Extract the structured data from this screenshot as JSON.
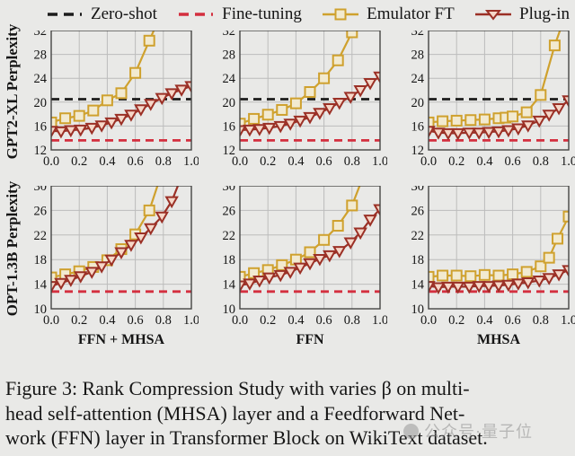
{
  "colors": {
    "background": "#e9e9e7",
    "frame": "#444444",
    "grid": "#bcbcbc",
    "tick_text": "#151515",
    "zero_shot": "#1c1c1c",
    "fine_tuning": "#d42f3f",
    "emulator_line": "#cfa12e",
    "emulator_fill": "#f2ead0",
    "plugin_line": "#9b3026",
    "plugin_fill": "#f6d7c8"
  },
  "legend": {
    "items": [
      {
        "key": "zero",
        "label": "Zero-shot"
      },
      {
        "key": "fine",
        "label": "Fine-tuning"
      },
      {
        "key": "emulator",
        "label": "Emulator FT"
      },
      {
        "key": "plugin",
        "label": "Plug-in"
      }
    ]
  },
  "rows": [
    {
      "ylabel": "GPT2-XL Perplexity"
    },
    {
      "ylabel": "OPT-1.3B Perplexity"
    }
  ],
  "caption": {
    "line1": "Figure 3: Rank Compression Study with varies β on multi-",
    "line2": "head self-attention (MHSA) layer and a Feedforward Net-",
    "line3": "work (FFN) layer in Transformer Block on WikiText dataset."
  },
  "watermark": {
    "text": "公众号·量子位"
  },
  "chart_data": [
    {
      "type": "line",
      "row": 0,
      "col": 0,
      "model": "GPT2-XL",
      "layer": "FFN + MHSA",
      "xlabel": "",
      "ylim": [
        12,
        32
      ],
      "yticks": [
        12,
        16,
        20,
        24,
        28,
        32
      ],
      "xlim": [
        0,
        1
      ],
      "xticks": [
        0.0,
        0.2,
        0.4,
        0.6,
        0.8,
        1.0
      ],
      "zero_shot": 20.5,
      "fine_tuning": 13.6,
      "series": [
        {
          "name": "Emulator FT",
          "marker": "square",
          "x": [
            0,
            0.1,
            0.2,
            0.3,
            0.4,
            0.5,
            0.6,
            0.7,
            0.76
          ],
          "y": [
            16.6,
            17.3,
            17.7,
            18.6,
            20.3,
            21.5,
            24.9,
            30.3,
            33.5
          ]
        },
        {
          "name": "Plug-in",
          "marker": "triangle",
          "x": [
            0,
            0.07,
            0.14,
            0.21,
            0.29,
            0.36,
            0.43,
            0.5,
            0.57,
            0.64,
            0.71,
            0.79,
            0.86,
            0.93,
            1.0
          ],
          "y": [
            15.2,
            15.1,
            15.3,
            15.4,
            15.7,
            16.1,
            16.6,
            17.2,
            17.9,
            18.8,
            19.7,
            20.7,
            21.5,
            22.1,
            22.7
          ]
        }
      ]
    },
    {
      "type": "line",
      "row": 0,
      "col": 1,
      "model": "GPT2-XL",
      "layer": "FFN",
      "xlabel": "",
      "ylim": [
        12,
        32
      ],
      "yticks": [
        12,
        16,
        20,
        24,
        28,
        32
      ],
      "xlim": [
        0,
        1
      ],
      "xticks": [
        0.0,
        0.2,
        0.4,
        0.6,
        0.8,
        1.0
      ],
      "zero_shot": 20.5,
      "fine_tuning": 13.6,
      "series": [
        {
          "name": "Emulator FT",
          "marker": "square",
          "x": [
            0,
            0.1,
            0.2,
            0.3,
            0.4,
            0.5,
            0.6,
            0.7,
            0.8,
            0.85
          ],
          "y": [
            16.4,
            17.2,
            17.9,
            18.7,
            19.8,
            21.7,
            24.0,
            27.0,
            31.7,
            33.5
          ]
        },
        {
          "name": "Plug-in",
          "marker": "triangle",
          "x": [
            0,
            0.07,
            0.14,
            0.21,
            0.29,
            0.36,
            0.43,
            0.5,
            0.57,
            0.64,
            0.71,
            0.79,
            0.86,
            0.93,
            1.0
          ],
          "y": [
            15.3,
            15.4,
            15.5,
            15.7,
            16.0,
            16.4,
            16.9,
            17.5,
            18.2,
            19.0,
            19.9,
            20.9,
            22.0,
            23.2,
            24.3
          ]
        }
      ]
    },
    {
      "type": "line",
      "row": 0,
      "col": 2,
      "model": "GPT2-XL",
      "layer": "MHSA",
      "xlabel": "",
      "ylim": [
        12,
        32
      ],
      "yticks": [
        12,
        16,
        20,
        24,
        28,
        32
      ],
      "xlim": [
        0,
        1
      ],
      "xticks": [
        0.0,
        0.2,
        0.4,
        0.6,
        0.8,
        1.0
      ],
      "zero_shot": 20.5,
      "fine_tuning": 13.6,
      "series": [
        {
          "name": "Emulator FT",
          "marker": "square",
          "x": [
            0,
            0.1,
            0.2,
            0.3,
            0.4,
            0.5,
            0.55,
            0.6,
            0.7,
            0.8,
            0.9,
            0.96
          ],
          "y": [
            16.6,
            16.8,
            16.9,
            17.0,
            17.1,
            17.3,
            17.4,
            17.6,
            18.3,
            21.2,
            29.5,
            33.5
          ]
        },
        {
          "name": "Plug-in",
          "marker": "triangle",
          "x": [
            0,
            0.07,
            0.14,
            0.21,
            0.29,
            0.36,
            0.43,
            0.5,
            0.57,
            0.64,
            0.71,
            0.79,
            0.86,
            0.93,
            1.0
          ],
          "y": [
            15.2,
            14.9,
            14.8,
            14.8,
            14.9,
            14.9,
            15.0,
            15.1,
            15.3,
            15.6,
            16.1,
            16.9,
            17.9,
            19.0,
            20.3
          ]
        }
      ]
    },
    {
      "type": "line",
      "row": 1,
      "col": 0,
      "model": "OPT-1.3B",
      "layer": "FFN + MHSA",
      "xlabel": "FFN + MHSA",
      "ylim": [
        10,
        30
      ],
      "yticks": [
        10,
        14,
        18,
        22,
        26,
        30
      ],
      "xlim": [
        0,
        1
      ],
      "xticks": [
        0.0,
        0.2,
        0.4,
        0.6,
        0.8,
        1.0
      ],
      "zero_shot": null,
      "fine_tuning": 12.8,
      "series": [
        {
          "name": "Emulator FT",
          "marker": "square",
          "x": [
            0,
            0.1,
            0.2,
            0.3,
            0.4,
            0.5,
            0.6,
            0.7,
            0.78
          ],
          "y": [
            15.1,
            15.6,
            16.1,
            16.8,
            17.9,
            19.7,
            22.1,
            26.0,
            31.5
          ]
        },
        {
          "name": "Plug-in",
          "marker": "triangle",
          "x": [
            0,
            0.07,
            0.14,
            0.21,
            0.29,
            0.36,
            0.43,
            0.5,
            0.57,
            0.64,
            0.71,
            0.79,
            0.86,
            0.93
          ],
          "y": [
            13.7,
            14.2,
            14.7,
            15.3,
            16.0,
            16.9,
            18.0,
            19.2,
            20.4,
            21.6,
            23.1,
            25.0,
            27.5,
            31.5
          ]
        }
      ]
    },
    {
      "type": "line",
      "row": 1,
      "col": 1,
      "model": "OPT-1.3B",
      "layer": "FFN",
      "xlabel": "FFN",
      "ylim": [
        10,
        30
      ],
      "yticks": [
        10,
        14,
        18,
        22,
        26,
        30
      ],
      "xlim": [
        0,
        1
      ],
      "xticks": [
        0.0,
        0.2,
        0.4,
        0.6,
        0.8,
        1.0
      ],
      "zero_shot": null,
      "fine_tuning": 12.8,
      "series": [
        {
          "name": "Emulator FT",
          "marker": "square",
          "x": [
            0,
            0.1,
            0.2,
            0.3,
            0.4,
            0.5,
            0.6,
            0.7,
            0.8,
            0.88
          ],
          "y": [
            15.2,
            15.8,
            16.3,
            17.1,
            18.0,
            19.2,
            21.2,
            23.5,
            26.8,
            31.5
          ]
        },
        {
          "name": "Plug-in",
          "marker": "triangle",
          "x": [
            0,
            0.07,
            0.14,
            0.21,
            0.29,
            0.36,
            0.43,
            0.5,
            0.57,
            0.64,
            0.71,
            0.79,
            0.86,
            0.93,
            1.0
          ],
          "y": [
            13.8,
            14.1,
            14.6,
            15.1,
            15.5,
            16.0,
            16.7,
            17.4,
            18.1,
            18.7,
            19.4,
            20.8,
            22.4,
            24.5,
            26.2
          ]
        }
      ]
    },
    {
      "type": "line",
      "row": 1,
      "col": 2,
      "model": "OPT-1.3B",
      "layer": "MHSA",
      "xlabel": "MHSA",
      "ylim": [
        10,
        30
      ],
      "yticks": [
        10,
        14,
        18,
        22,
        26,
        30
      ],
      "xlim": [
        0,
        1
      ],
      "xticks": [
        0.0,
        0.2,
        0.4,
        0.6,
        0.8,
        1.0
      ],
      "zero_shot": null,
      "fine_tuning": 12.8,
      "series": [
        {
          "name": "Emulator FT",
          "marker": "square",
          "x": [
            0,
            0.1,
            0.2,
            0.3,
            0.4,
            0.5,
            0.6,
            0.7,
            0.8,
            0.86,
            0.92,
            1.0
          ],
          "y": [
            15.2,
            15.4,
            15.4,
            15.3,
            15.5,
            15.4,
            15.6,
            16.0,
            16.9,
            18.3,
            21.4,
            25.0
          ]
        },
        {
          "name": "Plug-in",
          "marker": "triangle",
          "x": [
            0,
            0.07,
            0.14,
            0.21,
            0.29,
            0.36,
            0.43,
            0.5,
            0.57,
            0.64,
            0.71,
            0.79,
            0.86,
            0.93,
            1.0
          ],
          "y": [
            13.7,
            13.5,
            13.6,
            13.6,
            13.6,
            13.7,
            13.7,
            13.8,
            13.9,
            14.1,
            14.3,
            14.6,
            15.0,
            15.6,
            16.3
          ]
        }
      ]
    }
  ]
}
